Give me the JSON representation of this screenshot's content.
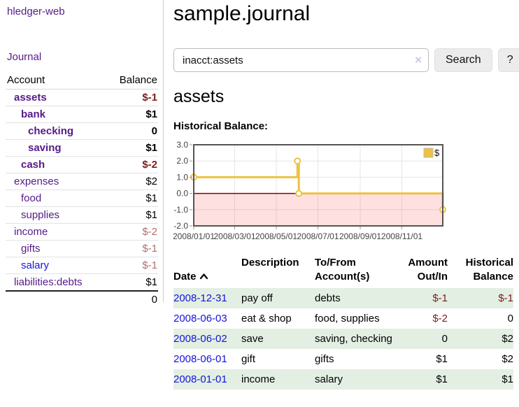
{
  "colors": {
    "link_purple": "#551a8b",
    "link_blue": "#1414dd",
    "negative_strong": "#7b1d1d",
    "negative_muted": "#b36f6f",
    "row_stripe_green": "#e3efe3",
    "chart_gold": "#edc240"
  },
  "sidebar": {
    "brand": "hledger-web",
    "journal_label": "Journal",
    "table": {
      "headers": [
        "Account",
        "Balance"
      ],
      "rows": [
        {
          "account": "assets",
          "balance": "$-1",
          "depth": 1,
          "inacct": true
        },
        {
          "account": "bank",
          "balance": "$1",
          "depth": 2,
          "inacct": true
        },
        {
          "account": "checking",
          "balance": "0",
          "depth": 3,
          "inacct": true
        },
        {
          "account": "saving",
          "balance": "$1",
          "depth": 3,
          "inacct": true
        },
        {
          "account": "cash",
          "balance": "$-2",
          "depth": 2,
          "inacct": true
        },
        {
          "account": "expenses",
          "balance": "$2",
          "depth": 1,
          "inacct": false
        },
        {
          "account": "food",
          "balance": "$1",
          "depth": 2,
          "inacct": false
        },
        {
          "account": "supplies",
          "balance": "$1",
          "depth": 2,
          "inacct": false
        },
        {
          "account": "income",
          "balance": "$-2",
          "depth": 1,
          "inacct": false
        },
        {
          "account": "gifts",
          "balance": "$-1",
          "depth": 2,
          "inacct": false
        },
        {
          "account": "salary",
          "balance": "$-1",
          "depth": 2,
          "inacct": false,
          "unvisited": true
        },
        {
          "account": "liabilities:debts",
          "balance": "$1",
          "depth": 1,
          "inacct": false
        }
      ],
      "total": "0"
    }
  },
  "main": {
    "title": "sample.journal",
    "search": {
      "value": "inacct:assets",
      "clear_icon": "×",
      "search_button": "Search",
      "help_button": "?"
    },
    "account_heading": "assets",
    "section_label": "Historical Balance:"
  },
  "chart_data": {
    "type": "line",
    "step": true,
    "title": "Historical Balance",
    "xlim": [
      "2008-01-01",
      "2008-12-31"
    ],
    "ylim": [
      -2,
      3
    ],
    "yticks": [
      "3.0",
      "2.0",
      "1.0",
      "0.0",
      "-1.0",
      "-2.0"
    ],
    "xticks": [
      {
        "date": "2008-01-01",
        "label": "2008/01/01"
      },
      {
        "date": "2008-03-01",
        "label": "2008/03/01"
      },
      {
        "date": "2008-05-01",
        "label": "2008/05/01"
      },
      {
        "date": "2008-07-01",
        "label": "2008/07/01"
      },
      {
        "date": "2008-09-01",
        "label": "2008/09/01"
      },
      {
        "date": "2008-11-01",
        "label": "2008/11/01"
      }
    ],
    "series": [
      {
        "name": "$",
        "color": "#edc240",
        "points": [
          [
            "2008-01-01",
            1
          ],
          [
            "2008-06-01",
            2
          ],
          [
            "2008-06-03",
            0
          ],
          [
            "2008-12-31",
            -1
          ]
        ]
      }
    ],
    "legend": {
      "label": "$",
      "position": "top-right"
    },
    "grid": true,
    "zero_line_color": "#8b0000",
    "negative_region_color": "#ff0000",
    "negative_region_opacity": 0.12
  },
  "register": {
    "headers": [
      {
        "label": "Date",
        "sorted": "ascending"
      },
      {
        "label": "Description"
      },
      {
        "label": "To/From\nAccount(s)"
      },
      {
        "label": "Amount\nOut/In",
        "align": "right"
      },
      {
        "label": "Historical\nBalance",
        "align": "right"
      }
    ],
    "rows": [
      {
        "date": "2008-12-31",
        "description": "pay off",
        "accounts": "debts",
        "amount": "$-1",
        "balance": "$-1"
      },
      {
        "date": "2008-06-03",
        "description": "eat & shop",
        "accounts": "food, supplies",
        "amount": "$-2",
        "balance": "0"
      },
      {
        "date": "2008-06-02",
        "description": "save",
        "accounts": "saving, checking",
        "amount": "0",
        "balance": "$2"
      },
      {
        "date": "2008-06-01",
        "description": "gift",
        "accounts": "gifts",
        "amount": "$1",
        "balance": "$2"
      },
      {
        "date": "2008-01-01",
        "description": "income",
        "accounts": "salary",
        "amount": "$1",
        "balance": "$1"
      }
    ]
  }
}
